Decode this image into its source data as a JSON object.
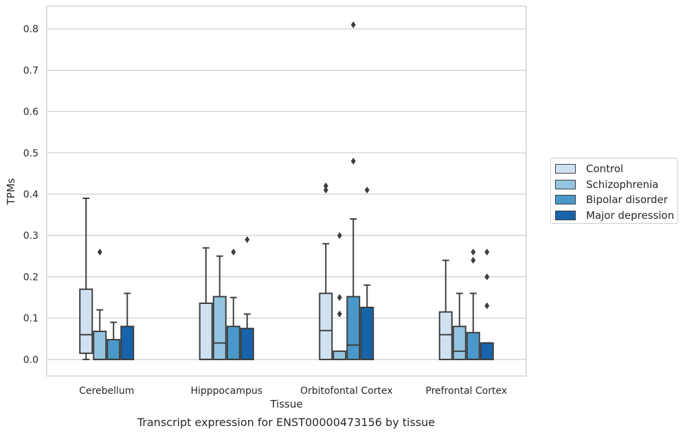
{
  "chart_data": {
    "type": "box",
    "title": "",
    "caption": "Transcript expression for ENST00000473156 by tissue",
    "xlabel": "Tissue",
    "ylabel": "TPMs",
    "ylim": [
      -0.04,
      0.855
    ],
    "yticks": [
      "0.0",
      "0.1",
      "0.2",
      "0.3",
      "0.4",
      "0.5",
      "0.6",
      "0.7",
      "0.8"
    ],
    "categories": [
      "Cerebellum",
      "Hipppocampus",
      "Orbitofontal Cortex",
      "Prefrontal Cortex"
    ],
    "grid": true,
    "legend_position": "right",
    "series": [
      {
        "name": "Control",
        "color": "#d0e1f2",
        "boxes": [
          {
            "whislo": 0.0,
            "q1": 0.015,
            "med": 0.06,
            "q3": 0.17,
            "whishi": 0.39,
            "fliers": []
          },
          {
            "whislo": 0.0,
            "q1": 0.0,
            "med": 0.0,
            "q3": 0.136,
            "whishi": 0.27,
            "fliers": []
          },
          {
            "whislo": 0.0,
            "q1": 0.0,
            "med": 0.07,
            "q3": 0.16,
            "whishi": 0.28,
            "fliers": [
              0.41,
              0.42
            ]
          },
          {
            "whislo": 0.0,
            "q1": 0.0,
            "med": 0.06,
            "q3": 0.115,
            "whishi": 0.24,
            "fliers": []
          }
        ]
      },
      {
        "name": "Schizophrenia",
        "color": "#94c4df",
        "boxes": [
          {
            "whislo": 0.0,
            "q1": 0.0,
            "med": 0.0,
            "q3": 0.068,
            "whishi": 0.12,
            "fliers": [
              0.26
            ]
          },
          {
            "whislo": 0.0,
            "q1": 0.0,
            "med": 0.04,
            "q3": 0.152,
            "whishi": 0.25,
            "fliers": []
          },
          {
            "whislo": 0.0,
            "q1": 0.0,
            "med": 0.0,
            "q3": 0.02,
            "whishi": 0.02,
            "fliers": [
              0.11,
              0.15,
              0.3
            ]
          },
          {
            "whislo": 0.0,
            "q1": 0.0,
            "med": 0.02,
            "q3": 0.08,
            "whishi": 0.16,
            "fliers": []
          }
        ]
      },
      {
        "name": "Bipolar disorder",
        "color": "#4a98c9",
        "boxes": [
          {
            "whislo": 0.0,
            "q1": 0.0,
            "med": 0.0,
            "q3": 0.048,
            "whishi": 0.09,
            "fliers": []
          },
          {
            "whislo": 0.0,
            "q1": 0.0,
            "med": 0.0,
            "q3": 0.08,
            "whishi": 0.15,
            "fliers": [
              0.26
            ]
          },
          {
            "whislo": 0.0,
            "q1": 0.0,
            "med": 0.035,
            "q3": 0.152,
            "whishi": 0.34,
            "fliers": [
              0.48,
              0.81
            ]
          },
          {
            "whislo": 0.0,
            "q1": 0.0,
            "med": 0.0,
            "q3": 0.065,
            "whishi": 0.16,
            "fliers": [
              0.24,
              0.26
            ]
          }
        ]
      },
      {
        "name": "Major depression",
        "color": "#1764ab",
        "boxes": [
          {
            "whislo": 0.0,
            "q1": 0.0,
            "med": 0.0,
            "q3": 0.08,
            "whishi": 0.16,
            "fliers": []
          },
          {
            "whislo": 0.0,
            "q1": 0.0,
            "med": 0.0,
            "q3": 0.075,
            "whishi": 0.11,
            "fliers": [
              0.29
            ]
          },
          {
            "whislo": 0.0,
            "q1": 0.0,
            "med": 0.0,
            "q3": 0.126,
            "whishi": 0.18,
            "fliers": [
              0.41
            ]
          },
          {
            "whislo": 0.0,
            "q1": 0.0,
            "med": 0.0,
            "q3": 0.04,
            "whishi": 0.04,
            "fliers": [
              0.13,
              0.2,
              0.26
            ]
          }
        ]
      }
    ]
  }
}
